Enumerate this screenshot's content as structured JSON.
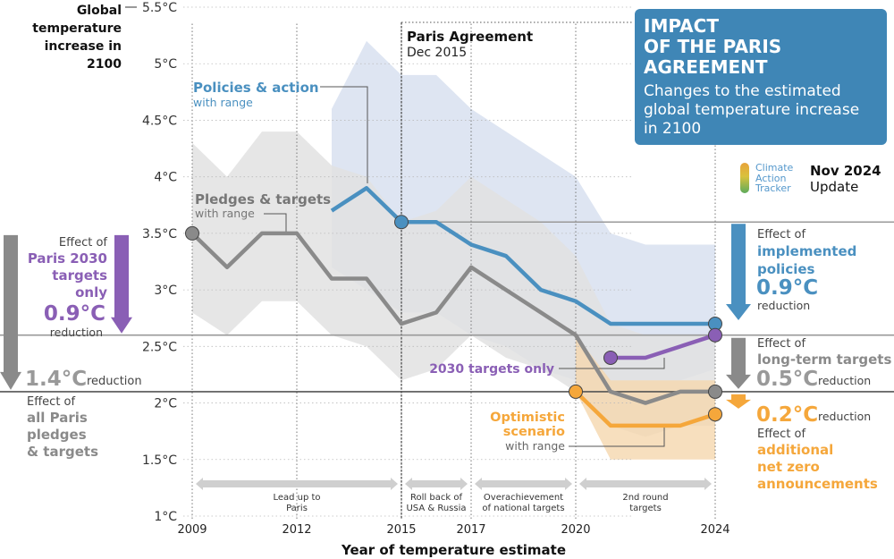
{
  "header": {
    "title": "IMPACT\nOF THE PARIS\nAGREEMENT",
    "subtitle": "Changes to the estimated global temperature increase in 2100"
  },
  "logo": {
    "name": "Climate Action Tracker",
    "lines": [
      "Climate",
      "Action",
      "Tracker"
    ],
    "icon": "thermometer-logo-icon"
  },
  "update": {
    "date": "Nov 2024",
    "label": "Update"
  },
  "chart_data": {
    "type": "line",
    "ylabel": [
      "Global",
      "temperature",
      "increase in",
      "2100"
    ],
    "xlabel": "Year of temperature estimate",
    "ylim": [
      1.0,
      5.5
    ],
    "xlim": [
      2008.7,
      2024.3
    ],
    "y_ticks": [
      "1°C",
      "1.5°C",
      "2°C",
      "2.5°C",
      "3°C",
      "3.5°C",
      "4°C",
      "4.5°C",
      "5°C",
      "5.5°C"
    ],
    "x_ticks": [
      "2009",
      "2012",
      "2015",
      "2017",
      "2020",
      "2024"
    ],
    "series": [
      {
        "name": "Policies & action",
        "sublabel": "with range",
        "color": "#4a90c0",
        "x": [
          2013,
          2014,
          2015,
          2016,
          2017,
          2018,
          2019,
          2020,
          2021,
          2022,
          2023,
          2024
        ],
        "y": [
          3.7,
          3.9,
          3.6,
          3.6,
          3.4,
          3.3,
          3.0,
          2.9,
          2.7,
          2.7,
          2.7,
          2.7
        ],
        "range_upper": [
          4.6,
          5.2,
          4.9,
          4.9,
          4.6,
          4.4,
          4.2,
          4.0,
          3.5,
          3.4,
          3.4,
          3.4
        ],
        "range_lower": [
          3.2,
          3.0,
          2.8,
          2.8,
          2.6,
          2.5,
          2.3,
          2.2,
          2.2,
          2.2,
          2.2,
          2.3
        ]
      },
      {
        "name": "Pledges & targets",
        "sublabel": "with range",
        "color": "#8a8a8a",
        "x": [
          2009,
          2010,
          2011,
          2012,
          2013,
          2014,
          2015,
          2016,
          2017,
          2018,
          2019,
          2020,
          2021,
          2022,
          2023,
          2024
        ],
        "y": [
          3.5,
          3.2,
          3.5,
          3.5,
          3.1,
          3.1,
          2.7,
          2.8,
          3.2,
          3.0,
          2.8,
          2.6,
          2.1,
          2.0,
          2.1,
          2.1
        ],
        "range_upper": [
          4.3,
          4.0,
          4.4,
          4.4,
          4.1,
          4.0,
          3.6,
          3.7,
          4.0,
          3.8,
          3.6,
          3.3,
          2.7,
          2.6,
          2.6,
          2.6
        ],
        "range_lower": [
          2.8,
          2.6,
          2.9,
          2.9,
          2.6,
          2.5,
          2.2,
          2.3,
          2.6,
          2.4,
          2.3,
          2.1,
          1.8,
          1.7,
          1.8,
          1.8
        ]
      },
      {
        "name": "2030 targets only",
        "color": "#8a5fb5",
        "x": [
          2021,
          2022,
          2023,
          2024
        ],
        "y": [
          2.4,
          2.4,
          2.5,
          2.6
        ]
      },
      {
        "name": "Optimistic scenario",
        "sublabel": "with range",
        "color": "#f5a73b",
        "x": [
          2020,
          2021,
          2022,
          2023,
          2024
        ],
        "y": [
          2.1,
          1.8,
          1.8,
          1.8,
          1.9
        ],
        "range_upper": [
          2.6,
          2.2,
          2.2,
          2.2,
          2.2
        ],
        "range_lower": [
          2.1,
          1.5,
          1.5,
          1.5,
          1.5
        ]
      }
    ],
    "reference_lines": [
      {
        "y": 3.6,
        "color": "#999999"
      },
      {
        "y": 2.6,
        "color": "#999999"
      },
      {
        "y": 2.1,
        "color": "#555555"
      }
    ],
    "markers": [
      {
        "x": 2009,
        "y": 3.5,
        "color": "#8a8a8a"
      },
      {
        "x": 2015,
        "y": 3.6,
        "color": "#4a90c0"
      },
      {
        "x": 2024,
        "y": 2.7,
        "color": "#4a90c0"
      },
      {
        "x": 2021,
        "y": 2.4,
        "color": "#8a5fb5"
      },
      {
        "x": 2024,
        "y": 2.6,
        "color": "#8a5fb5"
      },
      {
        "x": 2020,
        "y": 2.1,
        "color": "#f5a73b"
      },
      {
        "x": 2024,
        "y": 1.9,
        "color": "#f5a73b"
      },
      {
        "x": 2024,
        "y": 2.1,
        "color": "#8a8a8a"
      }
    ],
    "paris_agreement": {
      "x": 2015,
      "title": "Paris Agreement",
      "date": "Dec 2015"
    },
    "periods": [
      {
        "from": 2009,
        "to": 2015,
        "label": [
          "Lead up to",
          "Paris"
        ]
      },
      {
        "from": 2015,
        "to": 2017,
        "label": [
          "Roll back of",
          "USA & Russia"
        ]
      },
      {
        "from": 2017,
        "to": 2020,
        "label": [
          "Overachievement",
          "of national targets"
        ]
      },
      {
        "from": 2020,
        "to": 2024,
        "label": [
          "2nd round",
          "targets"
        ]
      }
    ],
    "annotations": {
      "paris2030": {
        "lines": [
          "Effect of",
          "Paris 2030",
          "targets",
          "only"
        ],
        "value": "0.9°C",
        "suffix": "reduction",
        "color": "#8a5fb5"
      },
      "allpledges": {
        "value": "1.4°C",
        "suffix": "reduction",
        "lines": [
          "Effect of",
          "all Paris",
          "pledges",
          "& targets"
        ],
        "color": "#8a8a8a"
      },
      "implemented": {
        "lines": [
          "Effect of",
          "implemented",
          "policies"
        ],
        "value": "0.9°C",
        "suffix": "reduction",
        "color": "#4a90c0"
      },
      "longterm": {
        "lines": [
          "Effect of",
          "long-term targets"
        ],
        "value": "0.5°C",
        "suffix": "reduction",
        "color": "#8a8a8a"
      },
      "netzero": {
        "value": "0.2°C",
        "suffix": "reduction",
        "lines": [
          "Effect of",
          "additional",
          "net zero",
          "announcements"
        ],
        "color": "#f5a73b"
      }
    }
  }
}
